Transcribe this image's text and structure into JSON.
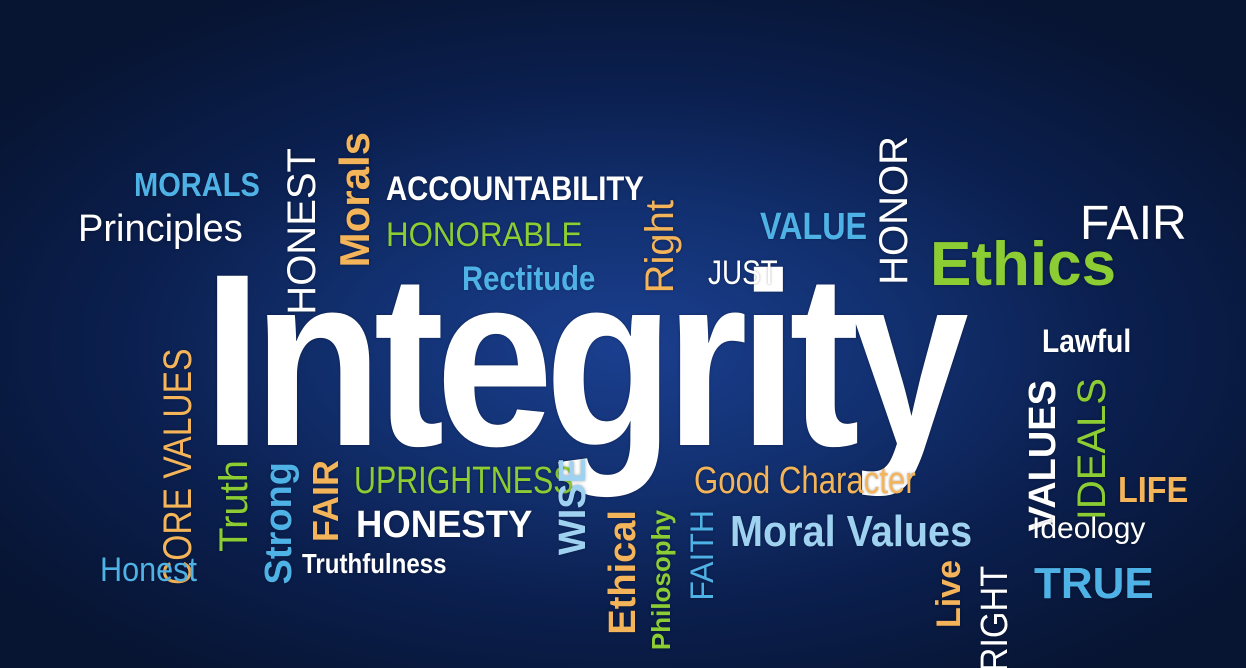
{
  "words": {
    "integrity": "Integrity",
    "morals_caps": "MORALS",
    "principles": "Principles",
    "honest_caps": "HONEST",
    "morals": "Morals",
    "accountability": "ACCOUNTABILITY",
    "honorable": "HONORABLE",
    "rectitude": "Rectitude",
    "right": "Right",
    "just": "JUST",
    "value": "VALUE",
    "honor": "HONOR",
    "fair_caps": "FAIR",
    "ethics": "Ethics",
    "lawful": "Lawful",
    "core_values": "CORE VALUES",
    "truth": "Truth",
    "strong": "Strong",
    "fair_orange": "FAIR",
    "uprightness": "UPRIGHTNESS",
    "honesty": "HONESTY",
    "wise": "WISE",
    "good_character": "Good Character",
    "values": "VALUES",
    "ideals": "IDEALS",
    "life": "LIFE",
    "honest": "Honest",
    "truthfulness": "Truthfulness",
    "ethical": "Ethical",
    "philosophy": "Philosophy",
    "faith": "FAITH",
    "moral_values": "Moral Values",
    "ideology": "Ideology",
    "live": "Live",
    "right_caps": "RIGHT",
    "true": "TRUE"
  },
  "colors": {
    "background": "#0b1f4e",
    "white": "#ffffff",
    "blue": "#4fb2e6",
    "light_blue": "#9fd2f0",
    "green": "#8ccd34",
    "orange": "#f3b45a"
  }
}
